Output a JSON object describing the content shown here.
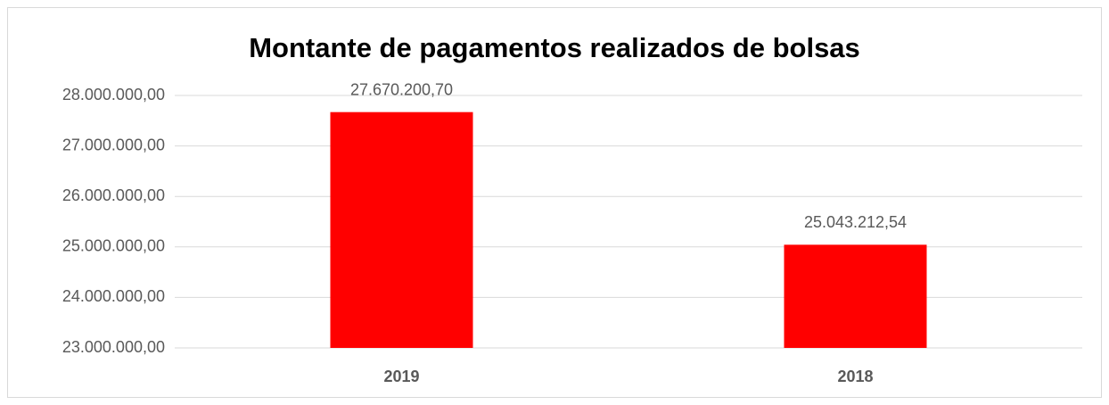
{
  "chart_data": {
    "type": "bar",
    "title": "Montante de pagamentos realizados de bolsas",
    "categories": [
      "2019",
      "2018"
    ],
    "values": [
      27670200.7,
      25043212.54
    ],
    "value_labels": [
      "27.670.200,70",
      "25.043.212,54"
    ],
    "color": "#ff0000",
    "ylim": [
      23000000,
      28000000
    ],
    "yticks": [
      {
        "value": 23000000,
        "label": "23.000.000,00"
      },
      {
        "value": 24000000,
        "label": "24.000.000,00"
      },
      {
        "value": 25000000,
        "label": "25.000.000,00"
      },
      {
        "value": 26000000,
        "label": "26.000.000,00"
      },
      {
        "value": 27000000,
        "label": "27.000.000,00"
      },
      {
        "value": 28000000,
        "label": "28.000.000,00"
      }
    ],
    "grid": true
  }
}
